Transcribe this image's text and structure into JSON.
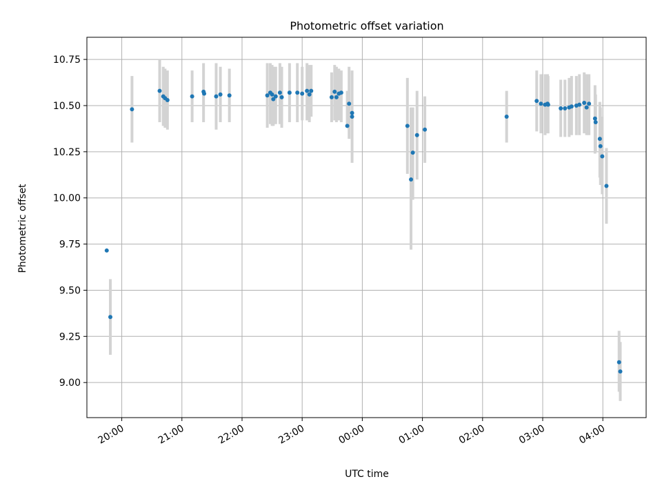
{
  "chart_data": {
    "type": "scatter",
    "title": "Photometric offset variation",
    "xlabel": "UTC time",
    "ylabel": "Photometric offset",
    "x_unit": "UTC time (hours; values after midnight continue past 24)",
    "xlim": [
      19.42,
      28.72
    ],
    "ylim": [
      8.81,
      10.87
    ],
    "grid": true,
    "x_ticks": [
      {
        "value": 20,
        "label": "20:00"
      },
      {
        "value": 21,
        "label": "21:00"
      },
      {
        "value": 22,
        "label": "22:00"
      },
      {
        "value": 23,
        "label": "23:00"
      },
      {
        "value": 24,
        "label": "00:00"
      },
      {
        "value": 25,
        "label": "01:00"
      },
      {
        "value": 26,
        "label": "02:00"
      },
      {
        "value": 27,
        "label": "03:00"
      },
      {
        "value": 28,
        "label": "04:00"
      }
    ],
    "y_ticks": [
      {
        "value": 9.0,
        "label": "9.00"
      },
      {
        "value": 9.25,
        "label": "9.25"
      },
      {
        "value": 9.5,
        "label": "9.50"
      },
      {
        "value": 9.75,
        "label": "9.75"
      },
      {
        "value": 10.0,
        "label": "10.00"
      },
      {
        "value": 10.25,
        "label": "10.25"
      },
      {
        "value": 10.5,
        "label": "10.50"
      },
      {
        "value": 10.75,
        "label": "10.75"
      }
    ],
    "colors": {
      "points": "#1f77b4",
      "errorbars": "#d3d3d3",
      "grid": "#b0b0b0"
    },
    "series": [
      {
        "points": [
          {
            "x": 19.75,
            "y": 9.715
          },
          {
            "x": 19.81,
            "y": 9.355,
            "err": [
              9.15,
              9.56
            ]
          },
          {
            "x": 20.17,
            "y": 10.48,
            "err": [
              10.3,
              10.66
            ]
          },
          {
            "x": 20.63,
            "y": 10.58,
            "err": [
              10.41,
              10.75
            ]
          },
          {
            "x": 20.69,
            "y": 10.55,
            "err": [
              10.39,
              10.71
            ]
          },
          {
            "x": 20.72,
            "y": 10.54,
            "err": [
              10.38,
              10.7
            ]
          },
          {
            "x": 20.76,
            "y": 10.53,
            "err": [
              10.37,
              10.69
            ]
          },
          {
            "x": 21.17,
            "y": 10.55,
            "err": [
              10.41,
              10.69
            ]
          },
          {
            "x": 21.36,
            "y": 10.575,
            "err": [
              10.41,
              10.73
            ]
          },
          {
            "x": 21.37,
            "y": 10.565
          },
          {
            "x": 21.57,
            "y": 10.55,
            "err": [
              10.37,
              10.73
            ]
          },
          {
            "x": 21.64,
            "y": 10.56,
            "err": [
              10.41,
              10.71
            ]
          },
          {
            "x": 21.79,
            "y": 10.555,
            "err": [
              10.41,
              10.7
            ]
          },
          {
            "x": 22.42,
            "y": 10.555,
            "err": [
              10.38,
              10.73
            ]
          },
          {
            "x": 22.47,
            "y": 10.57,
            "err": [
              10.4,
              10.73
            ]
          },
          {
            "x": 22.5,
            "y": 10.56,
            "err": [
              10.39,
              10.72
            ]
          },
          {
            "x": 22.52,
            "y": 10.535,
            "err": [
              10.39,
              10.71
            ]
          },
          {
            "x": 22.56,
            "y": 10.55,
            "err": [
              10.4,
              10.71
            ]
          },
          {
            "x": 22.63,
            "y": 10.57,
            "err": [
              10.4,
              10.73
            ]
          },
          {
            "x": 22.66,
            "y": 10.545,
            "err": [
              10.38,
              10.71
            ]
          },
          {
            "x": 22.79,
            "y": 10.57,
            "err": [
              10.41,
              10.73
            ]
          },
          {
            "x": 22.92,
            "y": 10.57,
            "err": [
              10.41,
              10.73
            ]
          },
          {
            "x": 23.0,
            "y": 10.565,
            "err": [
              10.42,
              10.71
            ]
          },
          {
            "x": 23.08,
            "y": 10.58,
            "err": [
              10.42,
              10.73
            ]
          },
          {
            "x": 23.12,
            "y": 10.56,
            "err": [
              10.41,
              10.72
            ]
          },
          {
            "x": 23.15,
            "y": 10.58,
            "err": [
              10.44,
              10.72
            ]
          },
          {
            "x": 23.49,
            "y": 10.545,
            "err": [
              10.41,
              10.68
            ]
          },
          {
            "x": 23.54,
            "y": 10.575,
            "err": [
              10.42,
              10.72
            ]
          },
          {
            "x": 23.57,
            "y": 10.545,
            "err": [
              10.41,
              10.71
            ]
          },
          {
            "x": 23.61,
            "y": 10.565,
            "err": [
              10.42,
              10.7
            ]
          },
          {
            "x": 23.65,
            "y": 10.57,
            "err": [
              10.41,
              10.69
            ]
          },
          {
            "x": 23.75,
            "y": 10.39,
            "err": [
              10.39,
              10.58
            ]
          },
          {
            "x": 23.78,
            "y": 10.51,
            "err": [
              10.32,
              10.71
            ]
          },
          {
            "x": 23.83,
            "y": 10.44,
            "err": [
              10.19,
              10.69
            ]
          },
          {
            "x": 23.83,
            "y": 10.46
          },
          {
            "x": 24.75,
            "y": 10.39,
            "err": [
              10.13,
              10.65
            ]
          },
          {
            "x": 24.81,
            "y": 10.1,
            "err": [
              9.72,
              10.49
            ]
          },
          {
            "x": 24.84,
            "y": 10.245,
            "err": [
              9.99,
              10.49
            ]
          },
          {
            "x": 24.91,
            "y": 10.34,
            "err": [
              10.1,
              10.58
            ]
          },
          {
            "x": 25.04,
            "y": 10.37,
            "err": [
              10.19,
              10.55
            ]
          },
          {
            "x": 26.4,
            "y": 10.44,
            "err": [
              10.3,
              10.58
            ]
          },
          {
            "x": 26.9,
            "y": 10.525,
            "err": [
              10.36,
              10.69
            ]
          },
          {
            "x": 26.97,
            "y": 10.51,
            "err": [
              10.35,
              10.67
            ]
          },
          {
            "x": 27.04,
            "y": 10.505,
            "err": [
              10.34,
              10.67
            ]
          },
          {
            "x": 27.08,
            "y": 10.51,
            "err": [
              10.35,
              10.67
            ]
          },
          {
            "x": 27.09,
            "y": 10.505,
            "err": [
              10.35,
              10.66
            ]
          },
          {
            "x": 27.3,
            "y": 10.485,
            "err": [
              10.33,
              10.64
            ]
          },
          {
            "x": 27.37,
            "y": 10.485,
            "err": [
              10.33,
              10.64
            ]
          },
          {
            "x": 27.44,
            "y": 10.49,
            "err": [
              10.33,
              10.65
            ]
          },
          {
            "x": 27.48,
            "y": 10.495,
            "err": [
              10.34,
              10.66
            ]
          },
          {
            "x": 27.56,
            "y": 10.5,
            "err": [
              10.34,
              10.66
            ]
          },
          {
            "x": 27.61,
            "y": 10.505,
            "err": [
              10.34,
              10.67
            ]
          },
          {
            "x": 27.69,
            "y": 10.515,
            "err": [
              10.35,
              10.68
            ]
          },
          {
            "x": 27.73,
            "y": 10.49,
            "err": [
              10.34,
              10.67
            ]
          },
          {
            "x": 27.77,
            "y": 10.51,
            "err": [
              10.34,
              10.67
            ]
          },
          {
            "x": 27.87,
            "y": 10.43,
            "err": [
              10.24,
              10.61
            ]
          },
          {
            "x": 27.88,
            "y": 10.41,
            "err": [
              10.25,
              10.56
            ]
          },
          {
            "x": 27.95,
            "y": 10.32,
            "err": [
              10.11,
              10.52
            ]
          },
          {
            "x": 27.96,
            "y": 10.28,
            "err": [
              10.07,
              10.49
            ]
          },
          {
            "x": 27.99,
            "y": 10.225,
            "err": [
              10.02,
              10.44
            ]
          },
          {
            "x": 28.06,
            "y": 10.065,
            "err": [
              9.86,
              10.27
            ]
          },
          {
            "x": 28.27,
            "y": 9.11,
            "err": [
              8.95,
              9.28
            ]
          },
          {
            "x": 28.29,
            "y": 9.06,
            "err": [
              8.9,
              9.22
            ]
          }
        ]
      }
    ]
  }
}
